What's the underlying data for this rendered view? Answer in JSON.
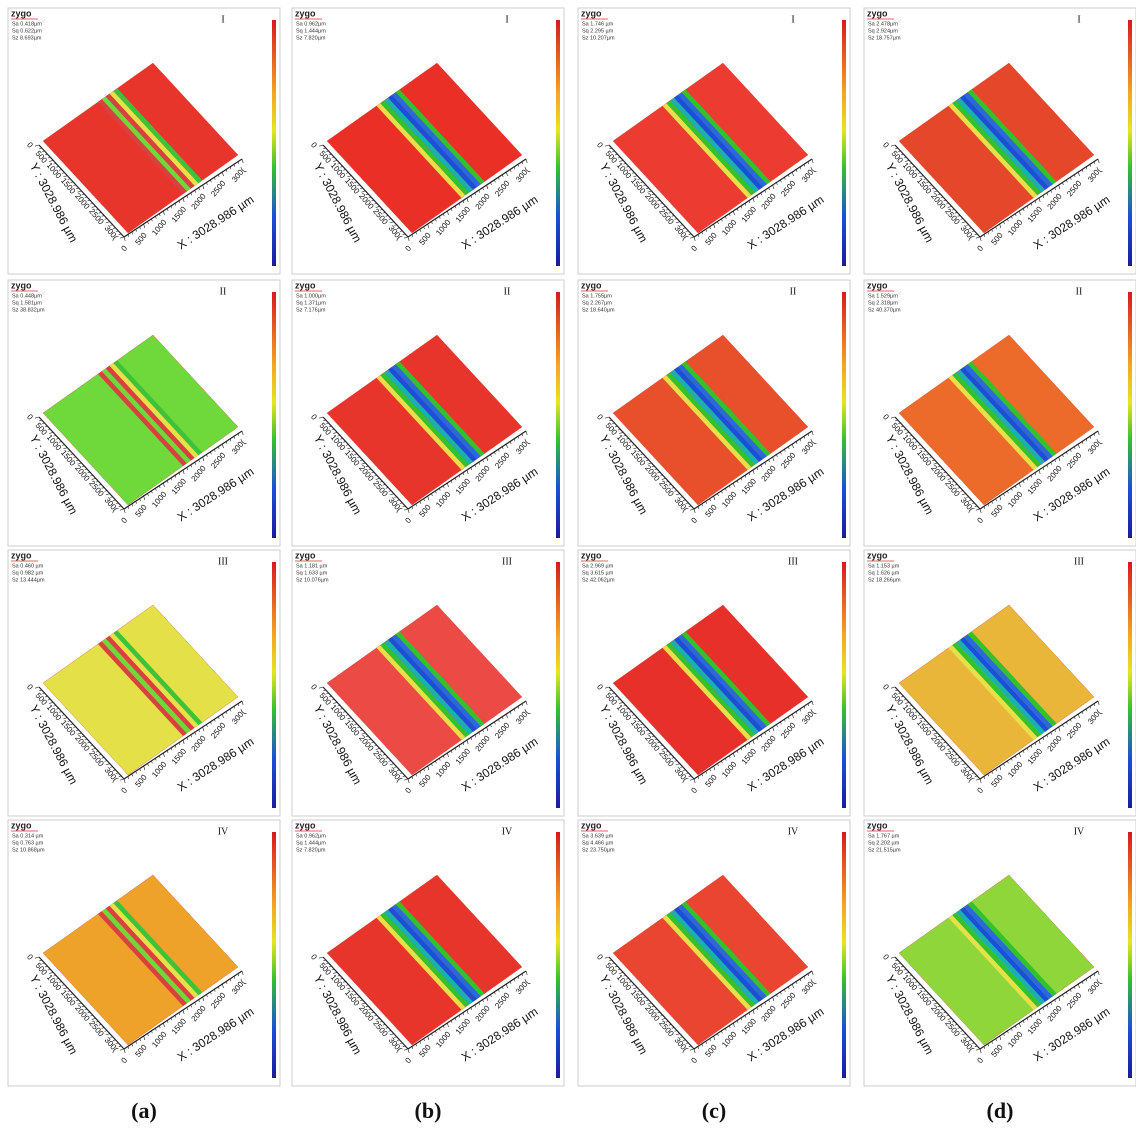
{
  "logo": "zygo",
  "x_axis_title": "X : 3028.986 µm",
  "y_axis_title": "Y : 3028.986 µm",
  "axis_ticks": [
    "0",
    "500",
    "1000",
    "1500",
    "2000",
    "2500",
    "300("
  ],
  "rows": [
    {
      "label": "I",
      "panels": [
        {
          "stats": [
            "Sa 0.418µm",
            "Sq 0.622µm",
            "Sz 8.693µm"
          ]
        },
        {
          "stats": [
            "Sa 0.962µm",
            "Sq 1.444µm",
            "Sz 7.820µm"
          ]
        },
        {
          "stats": [
            "Sa 1.746 µm",
            "Sq 2.295 µm",
            "Sz 10.207µm"
          ]
        },
        {
          "stats": [
            "Sa 2.478µm",
            "Sq 2.924µm",
            "Sz 18.757µm"
          ]
        }
      ]
    },
    {
      "label": "II",
      "panels": [
        {
          "stats": [
            "Sa 0.448µm",
            "Sq 1.581µm",
            "Sz 38.832µm"
          ]
        },
        {
          "stats": [
            "Sa 1.000µm",
            "Sq 1.371µm",
            "Sz 7.176µm"
          ]
        },
        {
          "stats": [
            "Sa 1.755µm",
            "Sq 2.267µm",
            "Sz 18.640µm"
          ]
        },
        {
          "stats": [
            "Sa 1.529µm",
            "Sq 2.318µm",
            "Sz 40.370µm"
          ]
        }
      ]
    },
    {
      "label": "III",
      "panels": [
        {
          "stats": [
            "Sa 0.460 µm",
            "Sq 0.982 µm",
            "Sz 13.444µm"
          ]
        },
        {
          "stats": [
            "Sa 1.181 µm",
            "Sq 1.633 µm",
            "Sz 10.076µm"
          ]
        },
        {
          "stats": [
            "Sa 2.969 µm",
            "Sq 3.615 µm",
            "Sz 42.062µm"
          ]
        },
        {
          "stats": [
            "Sa 1.153 µm",
            "Sq 1.626 µm",
            "Sz 18.266µm"
          ]
        }
      ]
    },
    {
      "label": "IV",
      "panels": [
        {
          "stats": [
            "Sa 0.314 µm",
            "Sq 0.763 µm",
            "Sz 10.868µm"
          ]
        },
        {
          "stats": [
            "Sa 0.962µm",
            "Sq 1.444µm",
            "Sz 7.820µm"
          ]
        },
        {
          "stats": [
            "Sa 3.639 µm",
            "Sq 4.466 µm",
            "Sz 23.750µm"
          ]
        },
        {
          "stats": [
            "Sa 1.767 µm",
            "Sq 2.202 µm",
            "Sz 21.515µm"
          ]
        }
      ]
    }
  ],
  "column_labels": [
    "(a)",
    "(b)",
    "(c)",
    "(d)"
  ]
}
